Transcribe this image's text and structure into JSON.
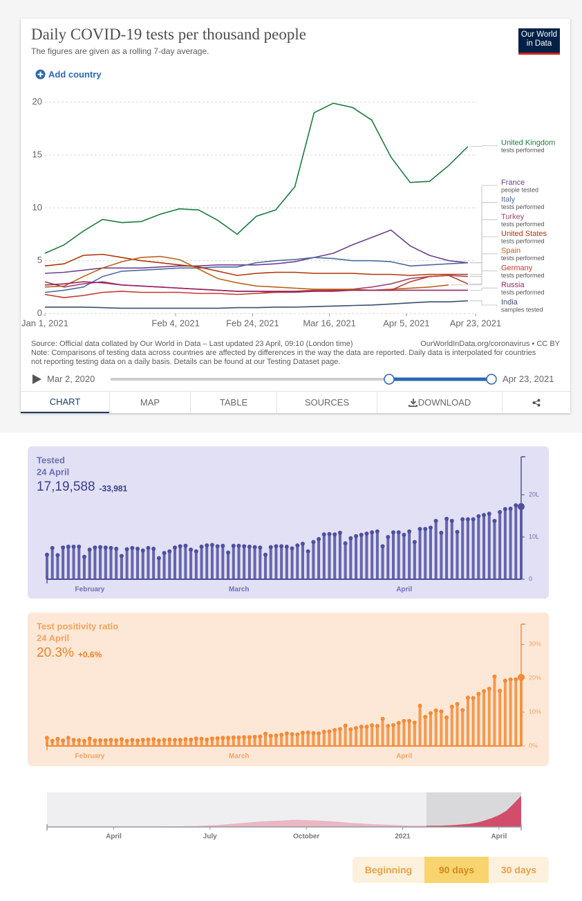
{
  "chart_data": [
    {
      "type": "line",
      "title": "Daily COVID-19 tests per thousand people",
      "subtitle": "The figures are given as a rolling 7-day average.",
      "logo": [
        "Our World",
        "in Data"
      ],
      "add_country": "Add country",
      "x": [
        "2021-01-01",
        "2021-01-06",
        "2021-01-11",
        "2021-01-16",
        "2021-01-21",
        "2021-01-26",
        "2021-01-31",
        "2021-02-05",
        "2021-02-10",
        "2021-02-15",
        "2021-02-20",
        "2021-02-25",
        "2021-03-02",
        "2021-03-07",
        "2021-03-12",
        "2021-03-17",
        "2021-03-22",
        "2021-03-27",
        "2021-04-01",
        "2021-04-06",
        "2021-04-11",
        "2021-04-16",
        "2021-04-21"
      ],
      "xlim": [
        "2021-01-01",
        "2021-04-23"
      ],
      "xticks": [
        {
          "value": "2021-01-01",
          "label": "Jan 1, 2021"
        },
        {
          "value": "2021-02-04",
          "label": "Feb 4, 2021"
        },
        {
          "value": "2021-02-24",
          "label": "Feb 24, 2021"
        },
        {
          "value": "2021-03-16",
          "label": "Mar 16, 2021"
        },
        {
          "value": "2021-04-05",
          "label": "Apr 5, 2021"
        },
        {
          "value": "2021-04-23",
          "label": "Apr 23, 2021"
        }
      ],
      "ylim": [
        0,
        20.5
      ],
      "yticks": [
        0,
        5,
        10,
        15,
        20
      ],
      "grid": true,
      "series": [
        {
          "name": "United Kingdom",
          "note": "tests performed",
          "color": "#1b7a3e",
          "values": [
            5.7,
            6.5,
            7.8,
            8.9,
            8.6,
            8.7,
            9.4,
            9.9,
            9.8,
            8.8,
            7.5,
            9.2,
            9.8,
            12.0,
            19.0,
            19.9,
            19.5,
            18.3,
            14.8,
            12.4,
            12.5,
            14.0,
            15.8
          ]
        },
        {
          "name": "France",
          "note": "people tested",
          "color": "#6d3e91",
          "values": [
            3.8,
            3.9,
            4.1,
            4.3,
            4.3,
            4.3,
            4.4,
            4.5,
            4.5,
            4.6,
            4.6,
            4.6,
            4.7,
            4.9,
            5.3,
            5.7,
            6.5,
            7.2,
            7.9,
            6.4,
            5.5,
            5.0,
            4.8
          ]
        },
        {
          "name": "Italy",
          "note": "tests performed",
          "color": "#4c6a9c",
          "values": [
            2.0,
            2.2,
            2.5,
            3.5,
            4.0,
            4.1,
            4.2,
            4.3,
            4.3,
            4.4,
            4.4,
            4.8,
            5.0,
            5.1,
            5.3,
            5.2,
            5.0,
            5.0,
            4.9,
            4.5,
            4.6,
            4.7,
            4.8
          ]
        },
        {
          "name": "Turkey",
          "note": "tests performed",
          "color": "#a0436d",
          "values": [
            3.0,
            2.5,
            2.8,
            3.0,
            2.7,
            2.6,
            2.5,
            2.4,
            2.3,
            2.2,
            2.1,
            2.1,
            2.0,
            2.0,
            2.1,
            2.2,
            2.3,
            2.5,
            2.8,
            3.3,
            3.5,
            3.6,
            3.5
          ]
        },
        {
          "name": "United States",
          "note": "tests performed",
          "color": "#b13507",
          "values": [
            4.5,
            4.7,
            5.5,
            5.6,
            5.3,
            5.0,
            4.8,
            4.6,
            4.4,
            4.0,
            3.6,
            3.8,
            3.9,
            3.9,
            3.8,
            3.8,
            3.8,
            3.7,
            3.7,
            3.6,
            3.7,
            3.7,
            3.7
          ]
        },
        {
          "name": "Spain",
          "note": "tests performed",
          "color": "#b8651a",
          "values": [
            2.5,
            2.6,
            3.5,
            4.3,
            4.9,
            5.3,
            5.4,
            5.1,
            4.2,
            3.3,
            2.9,
            2.6,
            2.5,
            2.4,
            2.3,
            2.3,
            2.3,
            2.2,
            2.3,
            2.4,
            2.5,
            2.7,
            null
          ]
        },
        {
          "name": "Germany",
          "note": "tests performed",
          "color": "#c0392b",
          "values": [
            1.8,
            1.5,
            1.7,
            2.0,
            2.1,
            2.0,
            2.0,
            2.0,
            1.9,
            1.9,
            1.8,
            1.9,
            2.0,
            2.1,
            2.2,
            2.2,
            2.2,
            2.2,
            2.2,
            3.0,
            3.5,
            3.6,
            2.8
          ]
        },
        {
          "name": "Russia",
          "note": "tests performed",
          "color": "#9b2466",
          "values": [
            2.7,
            2.8,
            3.0,
            2.9,
            2.7,
            2.6,
            2.5,
            2.4,
            2.3,
            2.2,
            2.1,
            2.1,
            2.1,
            2.1,
            2.1,
            2.1,
            2.2,
            2.2,
            2.2,
            2.2,
            2.2,
            2.2,
            2.2
          ]
        },
        {
          "name": "India",
          "note": "samples tested",
          "color": "#38506f",
          "values": [
            0.6,
            0.6,
            0.6,
            0.55,
            0.5,
            0.5,
            0.5,
            0.5,
            0.5,
            0.5,
            0.55,
            0.55,
            0.6,
            0.6,
            0.65,
            0.7,
            0.75,
            0.8,
            0.9,
            1.0,
            1.1,
            1.1,
            1.2
          ]
        }
      ],
      "source": "Source: Official data collated by Our World in Data – Last updated 23 April, 09:10 (London time)",
      "license": "OurWorldInData.org/coronavirus • CC BY",
      "note": [
        "Note: Comparisons of testing data across countries are affected by differences in the way the data are reported. Daily data is interpolated for countries",
        "not reporting testing data on a daily basis. Details can be found at our Testing Dataset page."
      ],
      "timeline": {
        "start": "Mar 2, 2020",
        "end": "Apr 23, 2021"
      },
      "tabs": [
        "CHART",
        "MAP",
        "TABLE",
        "SOURCES",
        "DOWNLOAD"
      ]
    },
    {
      "type": "lollipop",
      "title": "Tested",
      "date": "24 April",
      "latest": "17,19,588",
      "change": "-33,981",
      "color": "#4f4fa0",
      "categories": [
        null,
        null,
        null,
        null,
        null,
        null,
        null,
        "February",
        null,
        null,
        null,
        null,
        null,
        null,
        null,
        null,
        null,
        null,
        null,
        null,
        null,
        null,
        null,
        null,
        null,
        null,
        null,
        null,
        null,
        null,
        null,
        null,
        null,
        null,
        null,
        "March",
        null,
        null,
        null,
        null,
        null,
        null,
        null,
        null,
        null,
        null,
        null,
        null,
        null,
        null,
        null,
        null,
        null,
        null,
        null,
        null,
        null,
        null,
        null,
        null,
        null,
        null,
        null,
        null,
        null,
        null,
        "April",
        null,
        null,
        null,
        null,
        null,
        null,
        null,
        null,
        null,
        null,
        null,
        null,
        null,
        null,
        null,
        null,
        null,
        null,
        null,
        null,
        null,
        null,
        null
      ],
      "values": [
        5.8,
        7.4,
        5.7,
        7.5,
        7.7,
        7.7,
        7.7,
        5.3,
        7.0,
        7.5,
        7.6,
        7.5,
        7.4,
        7.2,
        5.5,
        7.1,
        7.4,
        7.2,
        6.8,
        7.4,
        7.2,
        5.0,
        6.2,
        6.6,
        7.5,
        7.8,
        7.9,
        7.0,
        6.6,
        7.7,
        8.0,
        8.1,
        7.8,
        7.9,
        6.3,
        7.9,
        7.9,
        7.8,
        7.7,
        7.6,
        7.5,
        5.8,
        7.6,
        7.8,
        7.8,
        7.7,
        7.3,
        8.0,
        8.4,
        6.6,
        8.8,
        9.5,
        10.6,
        10.7,
        10.6,
        11.0,
        8.5,
        9.7,
        10.2,
        10.5,
        10.8,
        11.1,
        11.3,
        7.8,
        10.0,
        11.1,
        11.1,
        10.5,
        11.3,
        8.8,
        11.9,
        11.9,
        12.2,
        13.8,
        11.0,
        14.3,
        13.8,
        11.2,
        14.2,
        14.2,
        14.2,
        14.9,
        15.2,
        15.5,
        13.8,
        15.9,
        16.6,
        16.7,
        17.5,
        17.19588
      ],
      "ylim": [
        0,
        29
      ],
      "yticks": [
        0,
        {
          "value": 10,
          "label": "10L"
        },
        {
          "value": 20,
          "label": "20L"
        }
      ]
    },
    {
      "type": "lollipop",
      "title": "Test positivity ratio",
      "date": "24 April",
      "latest": "20.3%",
      "change": "+0.6%",
      "color": "#f58a35",
      "categories": [
        null,
        null,
        null,
        null,
        null,
        null,
        null,
        "February",
        null,
        null,
        null,
        null,
        null,
        null,
        null,
        null,
        null,
        null,
        null,
        null,
        null,
        null,
        null,
        null,
        null,
        null,
        null,
        null,
        null,
        null,
        null,
        null,
        null,
        null,
        null,
        "March",
        null,
        null,
        null,
        null,
        null,
        null,
        null,
        null,
        null,
        null,
        null,
        null,
        null,
        null,
        null,
        null,
        null,
        null,
        null,
        null,
        null,
        null,
        null,
        null,
        null,
        null,
        null,
        null,
        null,
        null,
        "April",
        null,
        null,
        null,
        null,
        null,
        null,
        null,
        null,
        null,
        null,
        null,
        null,
        null,
        null,
        null,
        null,
        null,
        null,
        null,
        null,
        null,
        null,
        null
      ],
      "values": [
        2.4,
        1.5,
        2.1,
        1.6,
        2.4,
        1.8,
        1.7,
        1.5,
        2.2,
        1.6,
        1.7,
        1.7,
        1.8,
        1.7,
        2.0,
        1.5,
        1.8,
        1.6,
        1.8,
        1.9,
        2.0,
        1.6,
        1.8,
        1.9,
        1.8,
        1.8,
        2.0,
        1.9,
        2.2,
        2.1,
        1.9,
        2.2,
        2.3,
        2.4,
        2.4,
        2.5,
        2.5,
        2.6,
        2.6,
        2.7,
        2.8,
        3.6,
        3.0,
        3.1,
        3.3,
        3.7,
        3.5,
        3.4,
        3.9,
        4.0,
        3.8,
        3.7,
        4.2,
        4.3,
        4.7,
        5.0,
        6.0,
        4.9,
        5.3,
        5.7,
        5.7,
        6.1,
        5.9,
        8.0,
        5.9,
        6.2,
        6.8,
        7.4,
        7.4,
        6.9,
        11.9,
        8.6,
        9.7,
        10.5,
        10.2,
        8.4,
        11.6,
        12.4,
        10.6,
        14.3,
        14.2,
        15.4,
        16.2,
        16.9,
        20.5,
        16.3,
        19.3,
        19.7,
        19.7,
        20.3
      ],
      "ylim": [
        0,
        36
      ],
      "yticks": [
        {
          "value": 0,
          "label": "0%"
        },
        {
          "value": 10,
          "label": "10%"
        },
        {
          "value": 20,
          "label": "20%"
        },
        {
          "value": 30,
          "label": "30%"
        }
      ]
    },
    {
      "type": "area",
      "color": "#e8899f",
      "highlight_color": "#d24c6c",
      "categories": [
        null,
        null,
        null,
        null,
        null,
        null,
        null,
        null,
        null,
        "April",
        null,
        null,
        null,
        null,
        null,
        null,
        null,
        null,
        null,
        null,
        null,
        null,
        "July",
        null,
        null,
        null,
        null,
        null,
        null,
        null,
        null,
        null,
        null,
        null,
        null,
        "October",
        null,
        null,
        null,
        null,
        null,
        null,
        null,
        null,
        null,
        null,
        null,
        null,
        "2021",
        null,
        null,
        null,
        null,
        null,
        null,
        null,
        null,
        null,
        null,
        null,
        null,
        "April",
        null,
        null,
        null
      ],
      "values": [
        0,
        0,
        0,
        0,
        0,
        0,
        0,
        0,
        0,
        0,
        1,
        1,
        1,
        1,
        1,
        1,
        2,
        2,
        2,
        3,
        3,
        4,
        5,
        6,
        8,
        10,
        12,
        14,
        16,
        18,
        19,
        20,
        21,
        23,
        23,
        22,
        21,
        20,
        19,
        17,
        15,
        13,
        12,
        10,
        9,
        8,
        7,
        6,
        5,
        4,
        4,
        4,
        4,
        4,
        5,
        6,
        8,
        10,
        14,
        20,
        28,
        38,
        52,
        75,
        100
      ],
      "ranges": [
        "Beginning",
        "90 days",
        "30 days"
      ],
      "selected_range": "90 days"
    }
  ]
}
